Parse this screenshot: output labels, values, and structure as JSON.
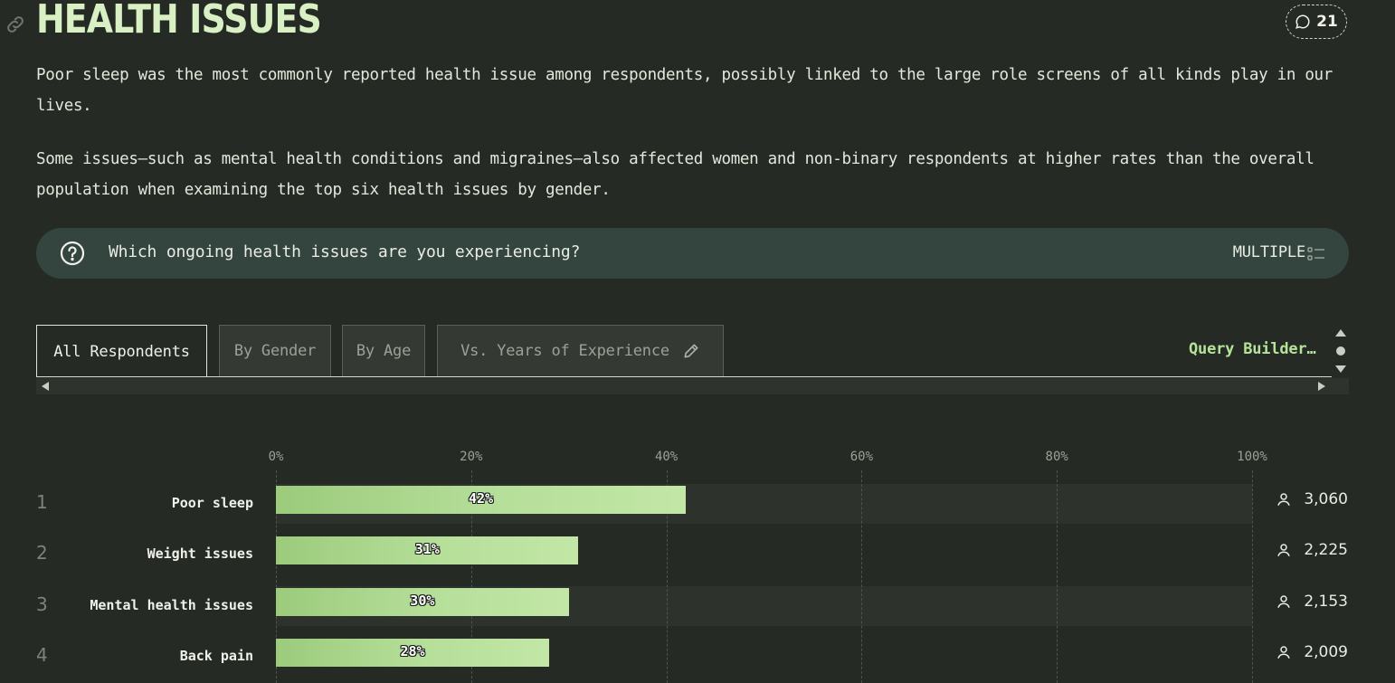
{
  "header": {
    "title": "HEALTH ISSUES",
    "comment_count": "21",
    "icons": [
      "link-icon",
      "comment-icon"
    ]
  },
  "paragraphs": [
    "Poor sleep was the most commonly reported health issue among respondents, possibly linked to the large role screens of all kinds play in our lives.",
    "Some issues—such as mental health conditions and migraines—also affected women and non-binary respondents at higher rates than the overall population when examining the top six health issues by gender."
  ],
  "question": {
    "text": "Which ongoing health issues are you experiencing?",
    "type": "MULTIPLE",
    "icons": [
      "question-icon",
      "multiple-choice-icon"
    ]
  },
  "tabs": [
    {
      "label": "All Respondents",
      "active": true
    },
    {
      "label": "By Gender",
      "active": false
    },
    {
      "label": "By Age",
      "active": false
    },
    {
      "label": "Vs. Years of Experience",
      "active": false,
      "icon": "pencil-icon"
    }
  ],
  "query_builder": "Query Builder…",
  "colors": {
    "background": "#252a24",
    "accent": "#b6e39a",
    "bar": "#b6df9a",
    "question_bar": "#344540"
  },
  "chart_data": {
    "type": "bar",
    "orientation": "horizontal",
    "x_ticks": [
      "0%",
      "20%",
      "40%",
      "60%",
      "80%",
      "100%"
    ],
    "xlim": [
      0,
      100
    ],
    "categories": [
      "Poor sleep",
      "Weight issues",
      "Mental health issues",
      "Back pain"
    ],
    "ranks": [
      "1",
      "2",
      "3",
      "4"
    ],
    "values": [
      42,
      31,
      30,
      28
    ],
    "value_labels": [
      "42%",
      "31%",
      "30%",
      "28%"
    ],
    "counts": [
      "3,060",
      "2,225",
      "2,153",
      "2,009"
    ],
    "grid": true
  }
}
